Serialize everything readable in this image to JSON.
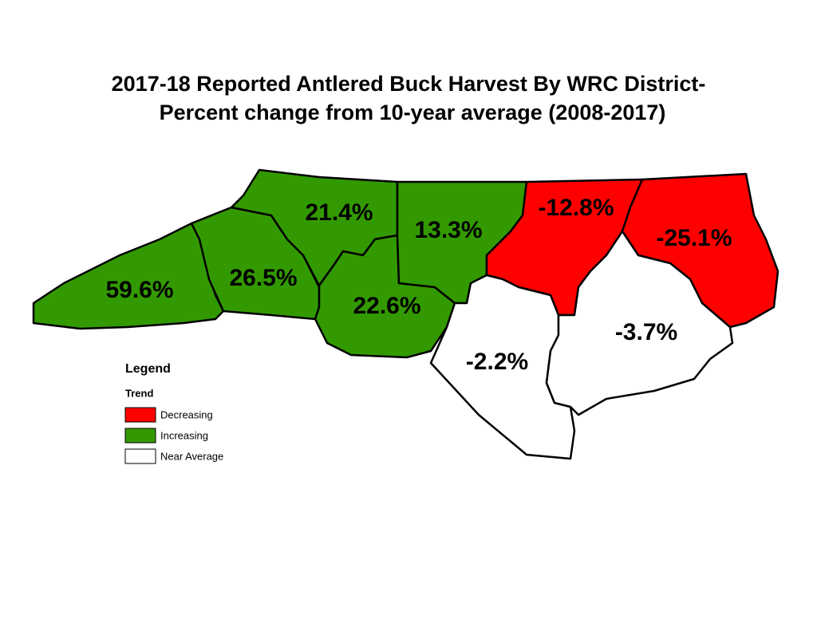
{
  "title": [
    "2017-18 Reported Antlered Buck Harvest By WRC District-",
    "Percent change from 10-year average (2008-2017)"
  ],
  "districts": [
    {
      "label": "59.6%",
      "trend": "Increasing"
    },
    {
      "label": "26.5%",
      "trend": "Increasing"
    },
    {
      "label": "21.4%",
      "trend": "Increasing"
    },
    {
      "label": "22.6%",
      "trend": "Increasing"
    },
    {
      "label": "13.3%",
      "trend": "Increasing"
    },
    {
      "label": "-12.8%",
      "trend": "Decreasing"
    },
    {
      "label": "-25.1%",
      "trend": "Decreasing"
    },
    {
      "label": "-2.2%",
      "trend": "Near Average"
    },
    {
      "label": "-3.7%",
      "trend": "Near Average"
    }
  ],
  "legend": {
    "title": "Legend",
    "subtitle": "Trend",
    "items": [
      {
        "name": "Decreasing",
        "color": "#ff0000"
      },
      {
        "name": "Increasing",
        "color": "#339900"
      },
      {
        "name": "Near Average",
        "color": "#ffffff"
      }
    ]
  }
}
